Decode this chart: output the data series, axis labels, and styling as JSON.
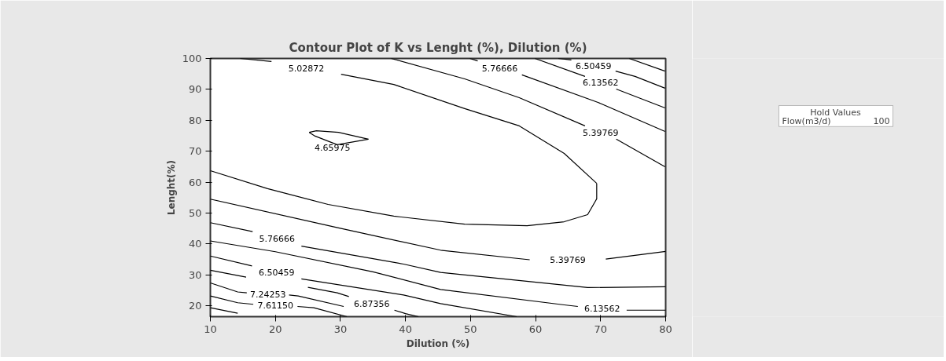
{
  "chart_data": {
    "type": "line",
    "title": "Contour Plot of K vs Lenght (%), Dilution (%)",
    "xlabel": "Dilution (%)",
    "ylabel": "Lenght(%)",
    "xlim": [
      10,
      80
    ],
    "ylim": [
      16.5,
      100
    ],
    "xticks": [
      10,
      20,
      30,
      40,
      50,
      60,
      70,
      80
    ],
    "yticks": [
      20,
      30,
      40,
      50,
      60,
      70,
      80,
      90,
      100
    ],
    "grid": false,
    "series": [
      {
        "color": "#000000",
        "x": [
          25.2,
          26.3,
          29.7,
          34.3
        ],
        "values": [
          76.1,
          76.6,
          76.1,
          73.9
        ]
      },
      {
        "name": "4.65975",
        "color": "#000000",
        "x": [
          25.2,
          26.1,
          29.5,
          34.3
        ],
        "values": [
          76.1,
          74.9,
          72.1,
          73.9
        ]
      },
      {
        "color": "#000000",
        "x": [
          10,
          18.8,
          28.1,
          38.2,
          49.1,
          58.7,
          64.4,
          68.0,
          69.4,
          69.4
        ],
        "values": [
          63.7,
          57.9,
          52.8,
          49.0,
          46.4,
          45.9,
          47.2,
          49.5,
          54.6,
          59.6
        ]
      },
      {
        "name": "5.02872",
        "color": "#000000",
        "x": [
          14.6,
          19.4,
          null,
          30.1,
          38.2,
          49.1,
          57.5,
          64.4,
          69.4
        ],
        "values": [
          100,
          99.0,
          null,
          94.9,
          91.6,
          83.8,
          78.2,
          69.3,
          59.6
        ]
      },
      {
        "name": "5.39769",
        "color": "#000000",
        "x": [
          37.8,
          49.1,
          57.5,
          67.6,
          null,
          72.4,
          79.9
        ],
        "values": [
          100,
          93.4,
          87.3,
          78.2,
          null,
          73.9,
          65.0
        ]
      },
      {
        "name": "5.39769",
        "color": "#000000",
        "x": [
          10,
          29.7,
          45.4,
          59.1,
          null,
          70.8,
          80
        ],
        "values": [
          54.5,
          45.2,
          38.0,
          34.9,
          null,
          35.1,
          37.6
        ]
      },
      {
        "name": "5.76666",
        "color": "#000000",
        "x": [
          49.9,
          51.1,
          null,
          57.9,
          69.6,
          79.9
        ],
        "values": [
          100,
          99.2,
          null,
          94.7,
          85.8,
          76.4
        ]
      },
      {
        "name": "5.76666",
        "color": "#000000",
        "x": [
          10,
          16.5,
          null,
          24.0,
          39.7,
          45.4,
          68.0,
          80
        ],
        "values": [
          46.9,
          44.0,
          null,
          39.3,
          33.5,
          30.8,
          25.9,
          26.2
        ]
      },
      {
        "name": "6.13562",
        "color": "#000000",
        "x": [
          59.9,
          67.6,
          null,
          72.4,
          79.9
        ],
        "values": [
          100,
          94.2,
          null,
          90.1,
          84.0
        ]
      },
      {
        "name": "6.13562",
        "color": "#000000",
        "x": [
          10,
          20,
          35,
          45.4,
          64.4,
          66.5,
          null,
          74.0,
          76.0,
          80
        ],
        "values": [
          41.0,
          37.5,
          31.0,
          25.3,
          20.3,
          19.8,
          null,
          18.6,
          18.6,
          18.6
        ]
      },
      {
        "name": "6.50459",
        "color": "#000000",
        "x": [
          63.5,
          65.5,
          null,
          72.3,
          75.3,
          79.9
        ],
        "values": [
          100,
          99.5,
          null,
          95.9,
          94.2,
          90.4
        ]
      },
      {
        "name": "6.50459",
        "color": "#000000",
        "x": [
          10,
          16.4,
          null,
          24.0,
          39.7,
          45.4,
          57.1
        ],
        "values": [
          36.1,
          32.9,
          null,
          28.7,
          23.5,
          20.7,
          16.5
        ]
      },
      {
        "color": "#000000",
        "x": [
          74.4,
          79.9
        ],
        "values": [
          100,
          95.9
        ]
      },
      {
        "name": "6.87356",
        "color": "#000000",
        "x": [
          10,
          15.5,
          null,
          25.0,
          29.5,
          31.3,
          null,
          38.3,
          40.0,
          42.0
        ],
        "values": [
          31.5,
          29.3,
          null,
          26.0,
          24.2,
          23.0,
          null,
          18.6,
          17.5,
          16.5
        ]
      },
      {
        "name": "7.24253",
        "color": "#000000",
        "x": [
          10,
          14.2,
          15.6,
          null,
          22.1,
          23.5,
          30.5
        ],
        "values": [
          27.4,
          24.5,
          24.2,
          null,
          23.5,
          23.2,
          19.8
        ]
      },
      {
        "name": "7.61150",
        "color": "#000000",
        "x": [
          10,
          14.2,
          16.6,
          null,
          23.4,
          25.9,
          31.0
        ],
        "values": [
          23.2,
          21.0,
          20.5,
          null,
          19.8,
          19.4,
          16.5
        ]
      },
      {
        "color": "#000000",
        "x": [
          10,
          14.2
        ],
        "values": [
          19.4,
          17.6
        ]
      }
    ],
    "annotations": [
      "Hold Values",
      "Flow(m3/d)",
      "100"
    ]
  }
}
